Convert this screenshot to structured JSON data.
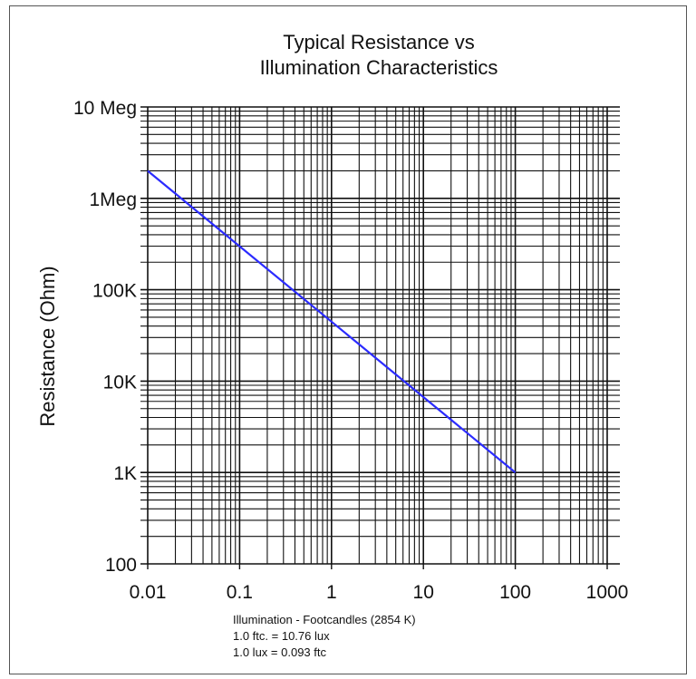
{
  "chart_data": {
    "type": "line",
    "title": [
      "Typical Resistance vs",
      "Illumination Characteristics"
    ],
    "xlabel": "Illumination - Footcandles (2854 K)",
    "ylabel": "Resistance (Ohm)",
    "x_scale": "log",
    "y_scale": "log",
    "xlim": [
      0.01,
      1000
    ],
    "ylim": [
      100,
      10000000
    ],
    "grid": true,
    "x_ticks": [
      {
        "value": 0.01,
        "label": "0.01"
      },
      {
        "value": 0.1,
        "label": "0.1"
      },
      {
        "value": 1,
        "label": "1"
      },
      {
        "value": 10,
        "label": "10"
      },
      {
        "value": 100,
        "label": "100"
      },
      {
        "value": 1000,
        "label": "1000"
      }
    ],
    "y_ticks": [
      {
        "value": 100,
        "label": "100"
      },
      {
        "value": 1000,
        "label": "1K"
      },
      {
        "value": 10000,
        "label": "10K"
      },
      {
        "value": 100000,
        "label": "100K"
      },
      {
        "value": 1000000,
        "label": "1Meg"
      },
      {
        "value": 10000000,
        "label": "10 Meg"
      }
    ],
    "series": [
      {
        "color": "#2b2bff",
        "points": [
          {
            "x": 0.01,
            "y": 2000000
          },
          {
            "x": 100,
            "y": 1000
          }
        ]
      }
    ],
    "notes": [
      "1.0 ftc. = 10.76 lux",
      "1.0 lux = 0.093 ftc"
    ]
  }
}
